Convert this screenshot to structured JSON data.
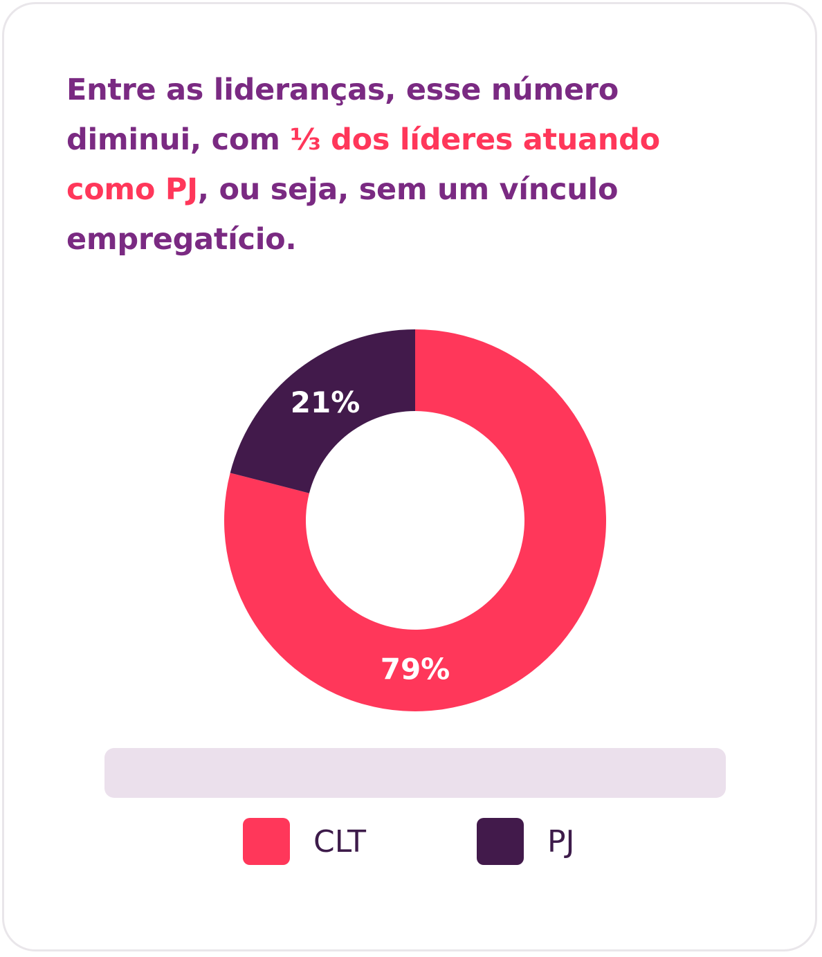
{
  "headline": {
    "part1": "Entre as lideranças, esse número diminui, com ",
    "highlight": "⅓ dos líderes atuando como PJ",
    "part2": ", ou seja, sem um vínculo empregatício."
  },
  "colors": {
    "headline": "#7a2a82",
    "highlight": "#ff375a",
    "clt": "#ff375a",
    "pj": "#421a4b",
    "strip": "#ebe0ec",
    "border": "#e9e6ea"
  },
  "chart_data": {
    "type": "pie",
    "donut": true,
    "categories": [
      "CLT",
      "PJ"
    ],
    "values": [
      79,
      21
    ],
    "value_labels": [
      "79%",
      "21%"
    ],
    "colors": [
      "#ff375a",
      "#421a4b"
    ],
    "legend": [
      {
        "label": "CLT",
        "color": "#ff375a"
      },
      {
        "label": "PJ",
        "color": "#421a4b"
      }
    ],
    "legend_placement": "bottom"
  }
}
